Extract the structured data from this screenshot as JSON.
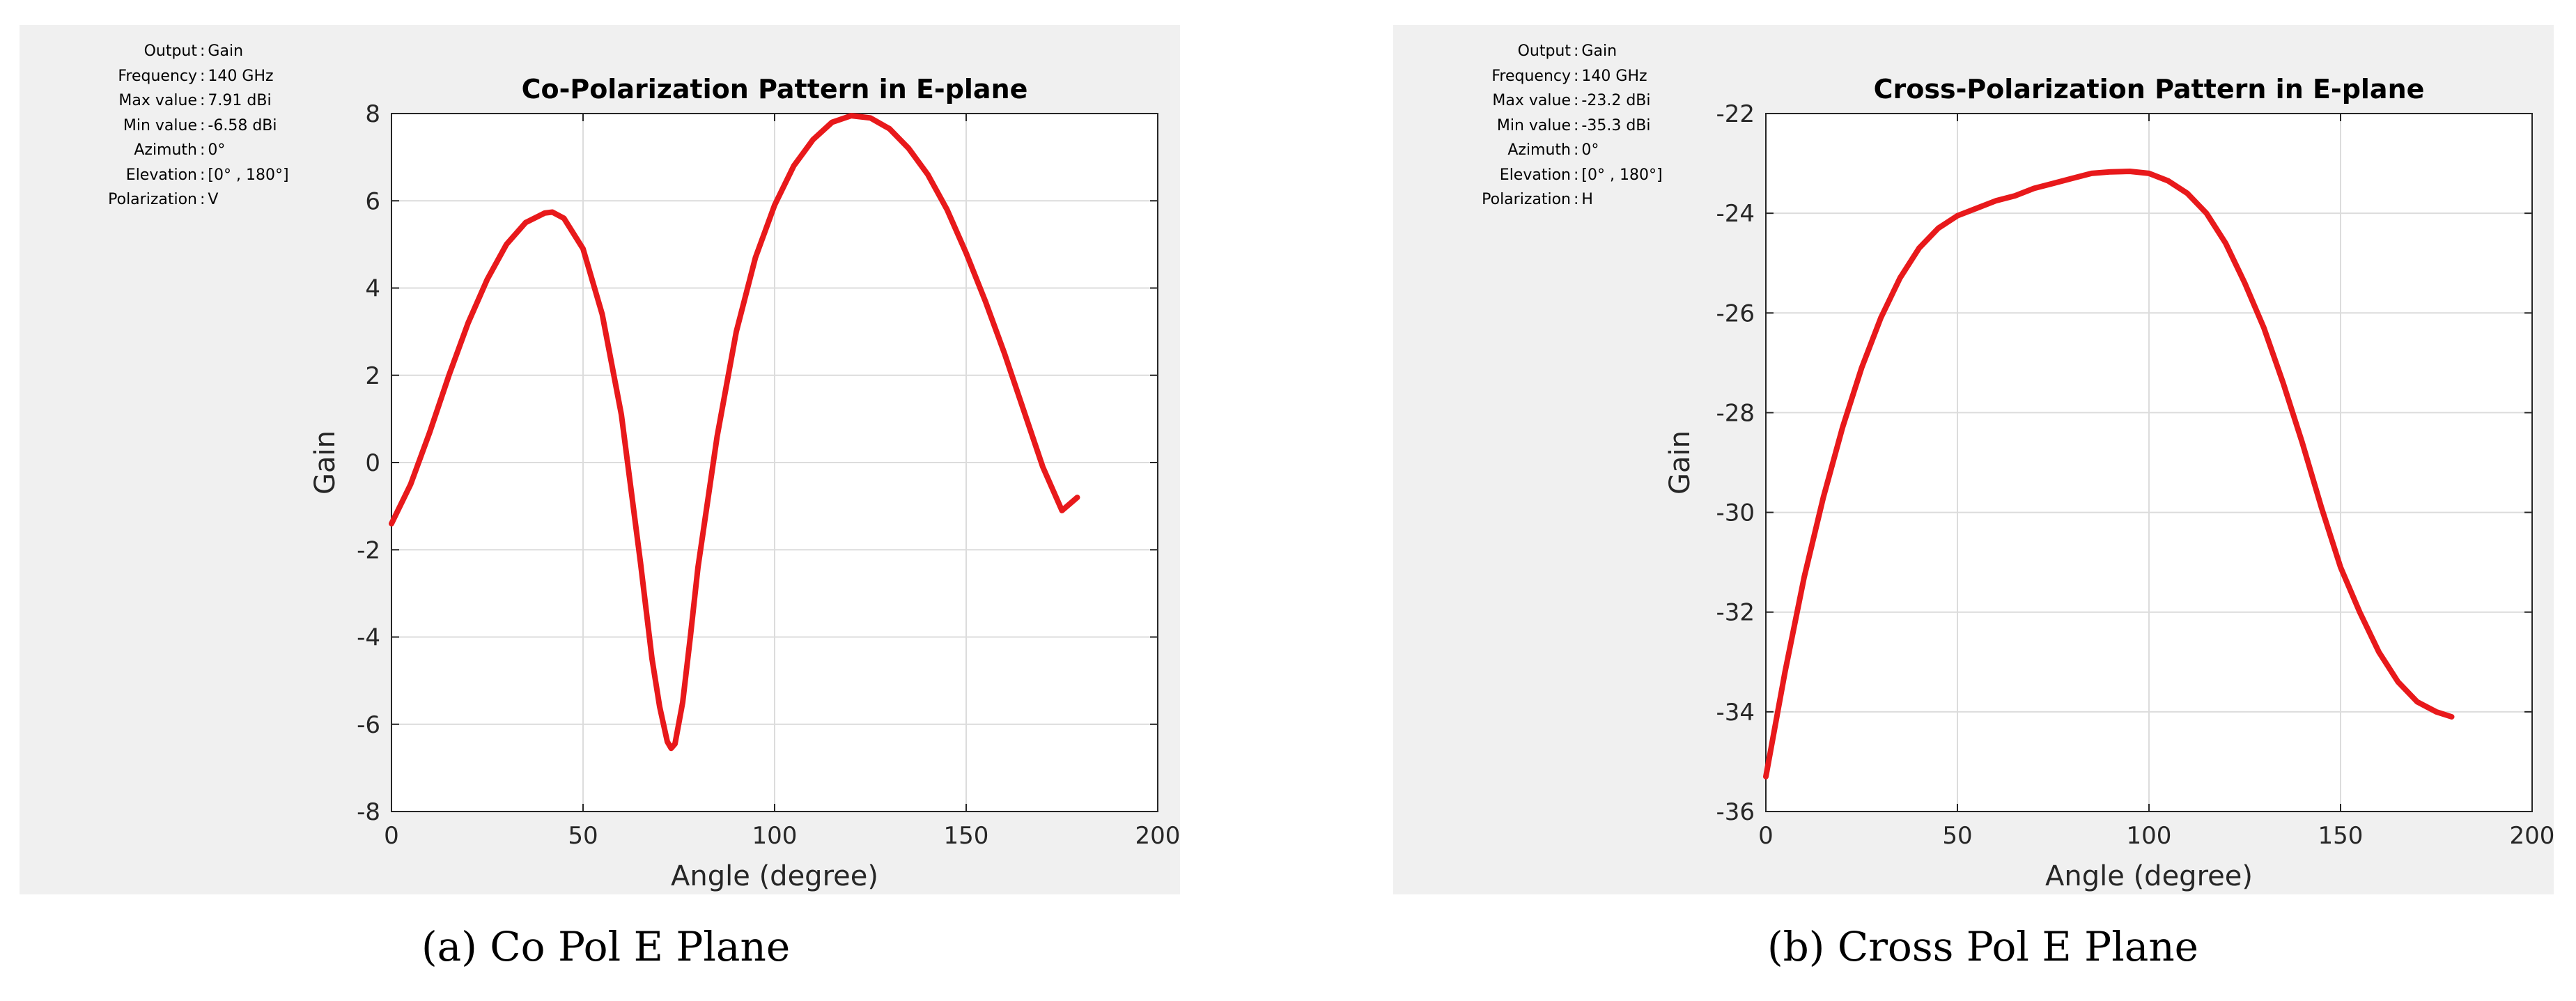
{
  "panels": [
    {
      "info": [
        {
          "label": "Output",
          "value": "Gain"
        },
        {
          "label": "Frequency",
          "value": "140 GHz"
        },
        {
          "label": "Max value",
          "value": "7.91 dBi"
        },
        {
          "label": "Min value",
          "value": "-6.58 dBi"
        },
        {
          "label": "Azimuth",
          "value": "0°"
        },
        {
          "label": "Elevation",
          "value": "[0° , 180°]"
        },
        {
          "label": "Polarization",
          "value": "V"
        }
      ],
      "caption": "(a)  Co Pol E Plane"
    },
    {
      "info": [
        {
          "label": "Output",
          "value": "Gain"
        },
        {
          "label": "Frequency",
          "value": "140 GHz"
        },
        {
          "label": "Max value",
          "value": "-23.2 dBi"
        },
        {
          "label": "Min value",
          "value": "-35.3 dBi"
        },
        {
          "label": "Azimuth",
          "value": "0°"
        },
        {
          "label": "Elevation",
          "value": "[0° , 180°]"
        },
        {
          "label": "Polarization",
          "value": "H"
        }
      ],
      "caption": "(b)  Cross Pol E Plane"
    }
  ],
  "chart_data": [
    {
      "type": "line",
      "title": "Co-Polarization Pattern in E-plane",
      "xlabel": "Angle (degree)",
      "ylabel": "Gain",
      "xlim": [
        0,
        200
      ],
      "ylim": [
        -8,
        8
      ],
      "xticks": [
        0,
        50,
        100,
        150,
        200
      ],
      "yticks": [
        -8,
        -6,
        -4,
        -2,
        0,
        2,
        4,
        6,
        8
      ],
      "grid": true,
      "color": "#e8191b",
      "series": [
        {
          "x": [
            0,
            5,
            10,
            15,
            20,
            25,
            30,
            35,
            40,
            42,
            45,
            50,
            55,
            60,
            65,
            68,
            70,
            72,
            73,
            74,
            76,
            78,
            80,
            85,
            90,
            95,
            100,
            105,
            110,
            115,
            120,
            125,
            130,
            135,
            140,
            145,
            150,
            155,
            160,
            165,
            170,
            175,
            179
          ],
          "y": [
            -1.4,
            -0.5,
            0.7,
            2.0,
            3.2,
            4.2,
            5.0,
            5.5,
            5.72,
            5.74,
            5.6,
            4.9,
            3.4,
            1.1,
            -2.3,
            -4.5,
            -5.6,
            -6.4,
            -6.55,
            -6.45,
            -5.5,
            -4.0,
            -2.4,
            0.6,
            3.0,
            4.7,
            5.9,
            6.8,
            7.4,
            7.8,
            7.95,
            7.9,
            7.65,
            7.2,
            6.6,
            5.8,
            4.8,
            3.7,
            2.5,
            1.2,
            -0.1,
            -1.1,
            -0.8
          ]
        }
      ]
    },
    {
      "type": "line",
      "title": "Cross-Polarization Pattern in E-plane",
      "xlabel": "Angle (degree)",
      "ylabel": "Gain",
      "xlim": [
        0,
        200
      ],
      "ylim": [
        -36,
        -22
      ],
      "xticks": [
        0,
        50,
        100,
        150,
        200
      ],
      "yticks": [
        -36,
        -34,
        -32,
        -30,
        -28,
        -26,
        -24,
        -22
      ],
      "grid": true,
      "color": "#e8191b",
      "series": [
        {
          "x": [
            0,
            5,
            10,
            15,
            20,
            25,
            30,
            35,
            40,
            45,
            50,
            55,
            60,
            65,
            70,
            75,
            80,
            85,
            90,
            95,
            100,
            105,
            110,
            115,
            120,
            125,
            130,
            135,
            140,
            145,
            150,
            155,
            160,
            165,
            170,
            175,
            179
          ],
          "y": [
            -35.3,
            -33.2,
            -31.3,
            -29.7,
            -28.3,
            -27.1,
            -26.1,
            -25.3,
            -24.7,
            -24.3,
            -24.05,
            -23.9,
            -23.75,
            -23.65,
            -23.5,
            -23.4,
            -23.3,
            -23.2,
            -23.17,
            -23.16,
            -23.2,
            -23.35,
            -23.6,
            -24.0,
            -24.6,
            -25.4,
            -26.3,
            -27.4,
            -28.6,
            -29.9,
            -31.1,
            -32.0,
            -32.8,
            -33.4,
            -33.8,
            -34.0,
            -34.1
          ]
        }
      ]
    }
  ]
}
